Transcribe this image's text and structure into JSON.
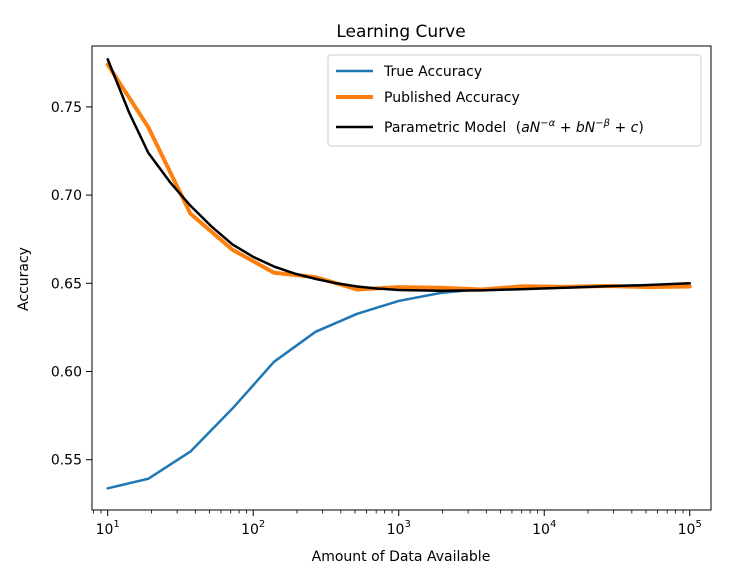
{
  "chart_data": {
    "type": "line",
    "title": "Learning Curve",
    "xlabel": "Amount of Data Available",
    "ylabel": "Accuracy",
    "xscale": "log",
    "xlim": [
      7.8,
      140000
    ],
    "ylim": [
      0.5215,
      0.7845
    ],
    "x_ticks": [
      10,
      100,
      1000,
      10000,
      100000
    ],
    "x_tick_labels": [
      {
        "base": "10",
        "exp": "1"
      },
      {
        "base": "10",
        "exp": "2"
      },
      {
        "base": "10",
        "exp": "3"
      },
      {
        "base": "10",
        "exp": "4"
      },
      {
        "base": "10",
        "exp": "5"
      }
    ],
    "y_ticks": [
      0.55,
      0.6,
      0.65,
      0.7,
      0.75
    ],
    "y_tick_labels": [
      "0.55",
      "0.60",
      "0.65",
      "0.70",
      "0.75"
    ],
    "grid": false,
    "legend_position": "top-right",
    "series": [
      {
        "name": "True Accuracy",
        "color": "#1f77b4",
        "line_width": 2.5,
        "x": [
          10,
          19,
          37,
          72,
          139,
          268,
          518,
          1000,
          1931,
          3728,
          7197,
          13895,
          26827,
          51795,
          100000
        ],
        "y": [
          0.5338,
          0.5392,
          0.5546,
          0.579,
          0.6055,
          0.6225,
          0.6327,
          0.64,
          0.6445,
          0.6468,
          0.6478,
          0.6483,
          0.6486,
          0.6488,
          0.649
        ]
      },
      {
        "name": "Published Accuracy",
        "color": "#ff7f0e",
        "line_width": 4,
        "x": [
          10,
          19,
          37,
          72,
          139,
          268,
          518,
          1000,
          1931,
          3728,
          7197,
          13895,
          26827,
          51795,
          100000
        ],
        "y": [
          0.774,
          0.7385,
          0.6895,
          0.669,
          0.656,
          0.6535,
          0.6465,
          0.6478,
          0.6475,
          0.6465,
          0.6483,
          0.648,
          0.6485,
          0.6478,
          0.6482
        ]
      },
      {
        "name": "Parametric Model",
        "name_math": "(aN^{-α} + bN^{-β} + c)",
        "color": "#000000",
        "line_width": 2.5,
        "x": [
          10,
          14,
          19,
          27,
          37,
          52,
          72,
          100,
          139,
          193,
          268,
          373,
          518,
          720,
          1000,
          1931,
          3728,
          7197,
          13895,
          26827,
          51795,
          100000
        ],
        "y": [
          0.777,
          0.747,
          0.724,
          0.707,
          0.694,
          0.682,
          0.672,
          0.665,
          0.6595,
          0.6555,
          0.6525,
          0.65,
          0.6482,
          0.647,
          0.6462,
          0.6458,
          0.646,
          0.6467,
          0.6475,
          0.6483,
          0.649,
          0.65
        ]
      }
    ]
  }
}
